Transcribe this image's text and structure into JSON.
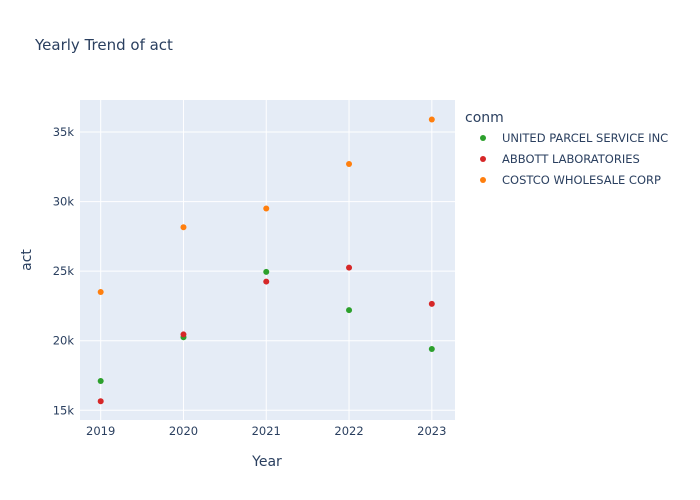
{
  "chart_data": {
    "type": "scatter",
    "title": "Yearly Trend of act",
    "xlabel": "Year",
    "ylabel": "act",
    "x": [
      2019,
      2020,
      2021,
      2022,
      2023
    ],
    "x_tick_labels": [
      "2019",
      "2020",
      "2021",
      "2022",
      "2023"
    ],
    "xlim": [
      2018.75,
      2023.28
    ],
    "ylim": [
      14300,
      37300
    ],
    "y_ticks": [
      15000,
      20000,
      25000,
      30000,
      35000
    ],
    "y_tick_labels": [
      "15k",
      "20k",
      "25k",
      "30k",
      "35k"
    ],
    "grid": true,
    "legend_title": "conm",
    "legend_position": "right",
    "series": [
      {
        "name": "UNITED PARCEL SERVICE INC",
        "color": "#2ca02c",
        "values": [
          17100,
          20250,
          24950,
          22200,
          19400
        ]
      },
      {
        "name": "ABBOTT LABORATORIES",
        "color": "#d62728",
        "values": [
          15650,
          20450,
          24250,
          25250,
          22650
        ]
      },
      {
        "name": "COSTCO WHOLESALE CORP",
        "color": "#ff7f0e",
        "values": [
          23500,
          28150,
          29500,
          32700,
          35900
        ]
      }
    ]
  }
}
